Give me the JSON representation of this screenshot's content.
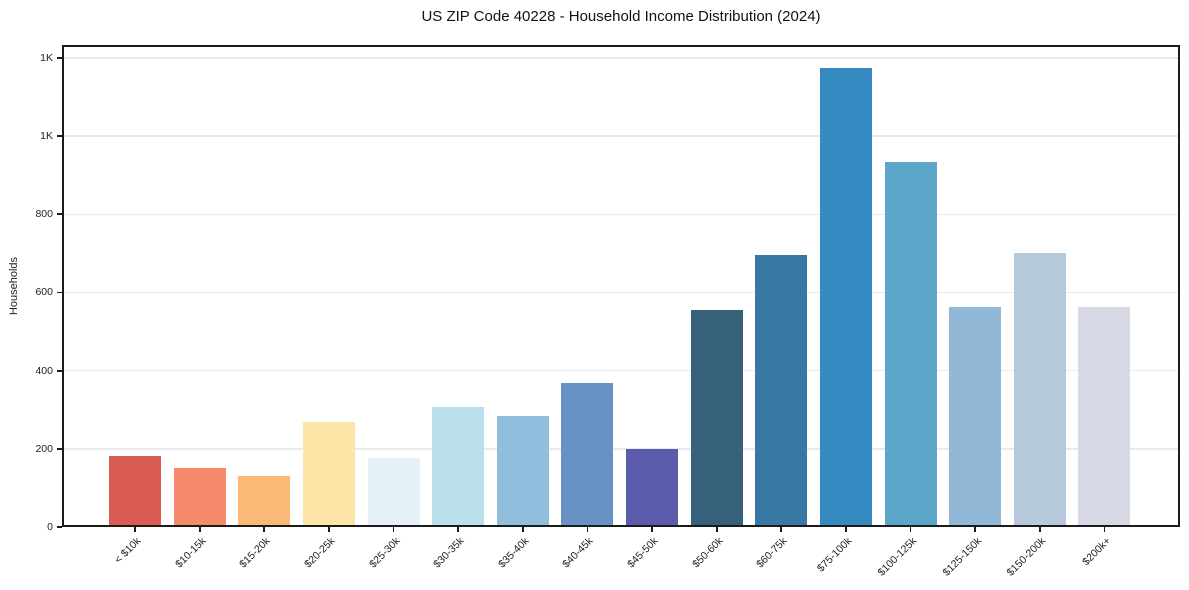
{
  "chart_data": {
    "type": "bar",
    "title": "US ZIP Code 40228 - Household Income Distribution (2024)",
    "xlabel": "",
    "ylabel": "Households",
    "categories": [
      "< $10k",
      "$10-15k",
      "$15-20k",
      "$20-25k",
      "$25-30k",
      "$30-35k",
      "$35-40k",
      "$40-45k",
      "$45-50k",
      "$50-60k",
      "$60-75k",
      "$75-100k",
      "$100-125k",
      "$125-150k",
      "$150-200k",
      "$200k+"
    ],
    "values": [
      182,
      152,
      131,
      268,
      176,
      306,
      284,
      369,
      200,
      556,
      695,
      1175,
      933,
      563,
      700,
      562
    ],
    "bar_colors": [
      "#d85c54",
      "#f58a6a",
      "#fbb977",
      "#fde5a7",
      "#e4f1f7",
      "#badfed",
      "#92bedd",
      "#6992c4",
      "#5a5bab",
      "#36617a",
      "#3879a4",
      "#358bc1",
      "#5ba6c9",
      "#92b8d8",
      "#b6c9dd",
      "#d7dae6"
    ],
    "yticks": [
      {
        "value": 0,
        "label": "0"
      },
      {
        "value": 200,
        "label": "200"
      },
      {
        "value": 400,
        "label": "400"
      },
      {
        "value": 600,
        "label": "600"
      },
      {
        "value": 800,
        "label": "800"
      },
      {
        "value": 1000,
        "label": "1K"
      },
      {
        "value": 1200,
        "label": "1K"
      }
    ],
    "ylim": [
      0,
      1233
    ],
    "grid": "horizontal",
    "gridline_color": "#e9e9ef",
    "legend": "none",
    "background": "#ffffff"
  }
}
